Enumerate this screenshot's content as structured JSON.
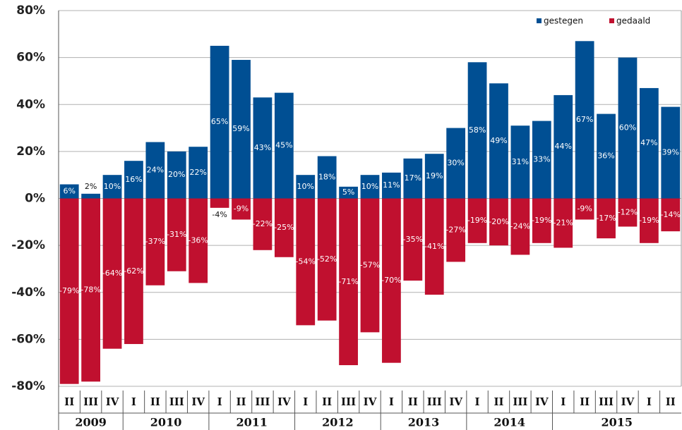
{
  "chart_data": {
    "type": "bar",
    "categories": [
      "II",
      "III",
      "IV",
      "I",
      "II",
      "III",
      "IV",
      "I",
      "II",
      "III",
      "IV",
      "I",
      "II",
      "III",
      "IV",
      "I",
      "II",
      "III",
      "IV",
      "I",
      "II",
      "III",
      "IV",
      "I",
      "II",
      "III",
      "IV",
      "I",
      "II"
    ],
    "year_groups": [
      "2009",
      "2010",
      "2011",
      "2012",
      "2013",
      "2014",
      "2015"
    ],
    "series": [
      {
        "name": "gestegen",
        "color": "#004f93",
        "values": [
          6,
          2,
          10,
          16,
          24,
          20,
          22,
          65,
          59,
          43,
          45,
          10,
          18,
          5,
          10,
          11,
          17,
          19,
          30,
          58,
          49,
          31,
          33,
          44,
          67,
          36,
          60,
          47,
          39
        ],
        "value_labels": [
          "6%",
          "2%",
          "10%",
          "16%",
          "24%",
          "20%",
          "22%",
          "65%",
          "59%",
          "43%",
          "45%",
          "10%",
          "18%",
          "5%",
          "10%",
          "11%",
          "17%",
          "19%",
          "30%",
          "58%",
          "49%",
          "31%",
          "33%",
          "44%",
          "67%",
          "36%",
          "60%",
          "47%",
          "39%"
        ]
      },
      {
        "name": "gedaald",
        "color": "#c0102f",
        "values": [
          -79,
          -78,
          -64,
          -62,
          -37,
          -31,
          -36,
          -4,
          -9,
          -22,
          -25,
          -54,
          -52,
          -71,
          -57,
          -70,
          -35,
          -41,
          -27,
          -19,
          -20,
          -24,
          -19,
          -21,
          -9,
          -17,
          -12,
          -19,
          -14
        ],
        "value_labels": [
          "-79%",
          "-78%",
          "-64%",
          "-62%",
          "-37%",
          "-31%",
          "-36%",
          "-4%",
          "-9%",
          "-22%",
          "-25%",
          "-54%",
          "-52%",
          "-71%",
          "-57%",
          "-70%",
          "-35%",
          "-41%",
          "-27%",
          "-19%",
          "-20%",
          "-24%",
          "-19%",
          "-21%",
          "-9%",
          "-17%",
          "-12%",
          "-19%",
          "-14%"
        ]
      }
    ],
    "ylim": [
      -80,
      80
    ],
    "yticks": [
      {
        "value": -80,
        "label": "-80%"
      },
      {
        "value": -60,
        "label": "-60%"
      },
      {
        "value": -40,
        "label": "-40%"
      },
      {
        "value": -20,
        "label": "-20%"
      },
      {
        "value": 0,
        "label": "0%"
      },
      {
        "value": 20,
        "label": "20%"
      },
      {
        "value": 40,
        "label": "40%"
      },
      {
        "value": 60,
        "label": "60%"
      },
      {
        "value": 80,
        "label": "80%"
      }
    ],
    "grid": true
  }
}
